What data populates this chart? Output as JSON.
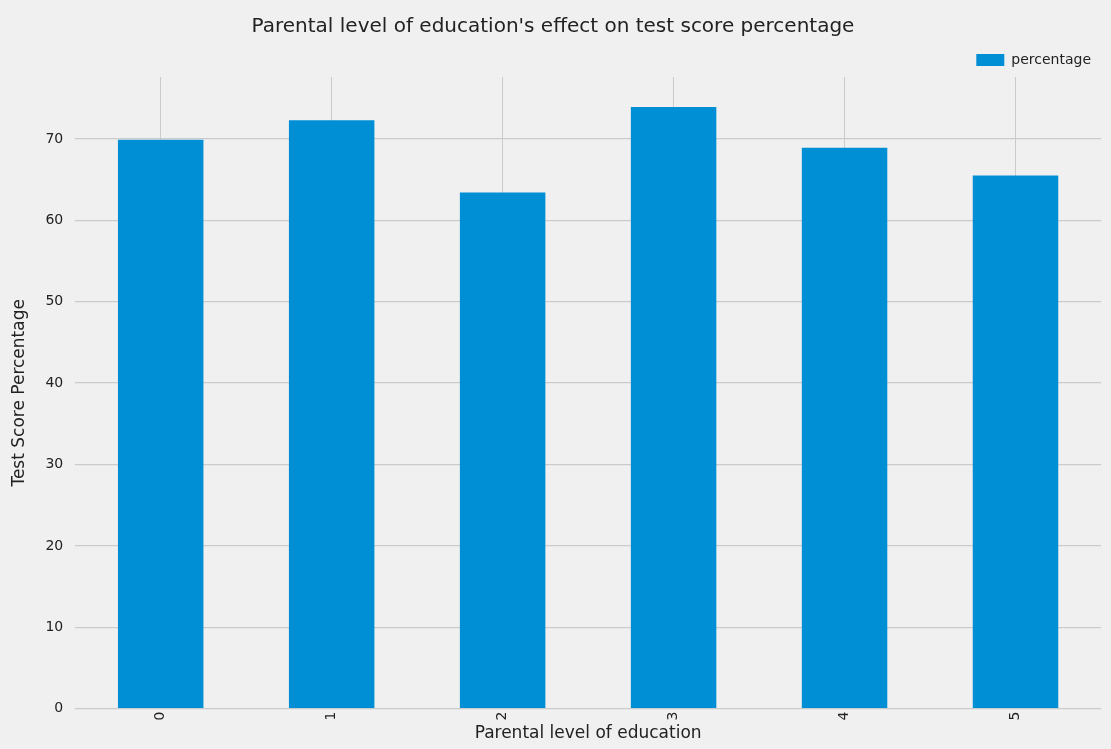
{
  "chart_data": {
    "type": "bar",
    "title": "Parental level of education's effect on test score percentage",
    "xlabel": "Parental level of education",
    "ylabel": "Test Score Percentage",
    "categories": [
      "0",
      "1",
      "2",
      "3",
      "4",
      "5"
    ],
    "series": [
      {
        "name": "percentage",
        "color": "#008fd5",
        "values": [
          69.9,
          72.3,
          63.4,
          73.9,
          68.9,
          65.5
        ]
      }
    ],
    "ylim": [
      0,
      77.6
    ],
    "yticks": [
      0,
      10,
      20,
      30,
      40,
      50,
      60,
      70
    ],
    "grid": true,
    "legend": "top right"
  }
}
